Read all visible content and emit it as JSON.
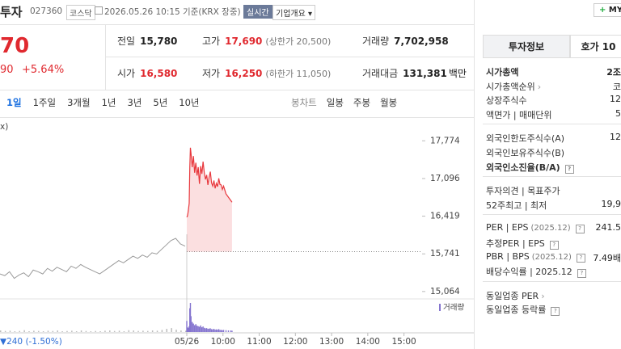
{
  "header": {
    "name": "투자",
    "code": "027360",
    "market": "코스닥",
    "timestamp": "2026.05.26 10:15 기준(KRX 장중)",
    "realtime": "실시간",
    "company_info": "기업개요",
    "my": "MY"
  },
  "quote": {
    "price": "70",
    "change": "90",
    "change_rate": "+5.64%",
    "stats": [
      {
        "label": "전일",
        "value": "15,780"
      },
      {
        "label": "고가",
        "value": "17,690",
        "note": "(상한가 20,500)",
        "color": "#e0292f"
      },
      {
        "label": "거래량",
        "value": "7,702,958"
      },
      {
        "label": "시가",
        "value": "16,580",
        "color": "#e0292f"
      },
      {
        "label": "저가",
        "value": "16,250",
        "note": "(하한가 11,050)",
        "color": "#e0292f"
      },
      {
        "label": "거래대금",
        "value": "131,381",
        "unit": "백만"
      }
    ]
  },
  "periods": [
    "1일",
    "1주일",
    "3개월",
    "1년",
    "3년",
    "5년",
    "10년"
  ],
  "active_period": 0,
  "candle_tabs": [
    "봉차트",
    "일봉",
    "주봉",
    "월봉"
  ],
  "chart": {
    "type": "line",
    "corner_label": "x)",
    "compare_label": "▼240 (-1.50%)",
    "volume_label": "거래량",
    "ylim": [
      14960,
      18200
    ],
    "yticks": [
      {
        "value": 17774,
        "label": "17,774"
      },
      {
        "value": 17096,
        "label": "17,096"
      },
      {
        "value": 16419,
        "label": "16,419"
      },
      {
        "value": 15741,
        "label": "15,741"
      },
      {
        "value": 15064,
        "label": "15,064"
      }
    ],
    "xlim": [
      540,
      930
    ],
    "xticks": [
      {
        "value": 540,
        "label": "05/26"
      },
      {
        "value": 600,
        "label": "10:00"
      },
      {
        "value": 660,
        "label": "11:00"
      },
      {
        "value": 720,
        "label": "12:00"
      },
      {
        "value": 780,
        "label": "13:00"
      },
      {
        "value": 840,
        "label": "14:00"
      },
      {
        "value": 900,
        "label": "15:00"
      }
    ],
    "baseline": 15780,
    "volume_color": "#8575cf",
    "prev_day": {
      "color": "#9a9a9a",
      "values": [
        15380,
        15350,
        15420,
        15300,
        15360,
        15400,
        15330,
        15450,
        15420,
        15380,
        15480,
        15430,
        15500,
        15460,
        15420,
        15520,
        15480,
        15550,
        15500,
        15460,
        15420,
        15380,
        15440,
        15500,
        15560,
        15620,
        15580,
        15640,
        15700,
        15660,
        15720,
        15680,
        15760,
        15740,
        15820,
        15900,
        15980,
        16020,
        15920,
        15880
      ],
      "volume": [
        60,
        40,
        50,
        30,
        40,
        70,
        30,
        50,
        40,
        30,
        50,
        40,
        60,
        30,
        40,
        50,
        30,
        60,
        40,
        30,
        40,
        30,
        50,
        60,
        40,
        50,
        30,
        70,
        60,
        40,
        50,
        40,
        60,
        50,
        80,
        120,
        150,
        90,
        60,
        50
      ]
    },
    "today": {
      "color": "#e8383d",
      "x": [
        540,
        541,
        542,
        543,
        544,
        545,
        546,
        547,
        549,
        551,
        553,
        555,
        557,
        559,
        561,
        563,
        565,
        567,
        569,
        571,
        573,
        575,
        577,
        579,
        581,
        583,
        585,
        587,
        589,
        591,
        593,
        595,
        597,
        599,
        601,
        605,
        609,
        613,
        615
      ],
      "values": [
        16400,
        16420,
        16480,
        16560,
        16650,
        17300,
        17650,
        17550,
        17300,
        17500,
        17200,
        17380,
        17150,
        17300,
        17000,
        17320,
        17180,
        17400,
        17200,
        17080,
        17160,
        16980,
        17120,
        17220,
        17020,
        16960,
        17060,
        16920,
        17010,
        16950,
        17100,
        16990,
        16980,
        16900,
        16960,
        16820,
        16760,
        16700,
        16670
      ],
      "volume": [
        420,
        180,
        150,
        160,
        220,
        900,
        1100,
        600,
        380,
        320,
        260,
        300,
        240,
        220,
        200,
        250,
        180,
        210,
        160,
        140,
        150,
        120,
        130,
        140,
        110,
        100,
        120,
        90,
        100,
        90,
        110,
        80,
        80,
        70,
        80,
        70,
        60,
        60,
        50
      ]
    }
  },
  "side_panel": {
    "tabs": [
      "투자정보",
      "호가 10"
    ],
    "groups": [
      [
        {
          "label": "시가총액",
          "value": "2조",
          "bold": true
        },
        {
          "label": "시가총액순위",
          "value": "코",
          "arrow": true
        },
        {
          "label": "상장주식수",
          "value": "12"
        },
        {
          "label": "액면가 | 매매단위",
          "value": "5"
        }
      ],
      [
        {
          "label": "외국인한도주식수(A)",
          "value": "12"
        },
        {
          "label": "외국인보유주식수(B)"
        },
        {
          "label": "외국인소진율(B/A)",
          "bold": true,
          "help": true
        }
      ],
      [
        {
          "label": "투자의견 | 목표주가"
        },
        {
          "label": "52주최고 | 최저",
          "value": "19,9"
        }
      ],
      [
        {
          "label": "PER | EPS",
          "date": "(2025.12)",
          "help": true,
          "value": "241.5"
        },
        {
          "label": "추정PER | EPS",
          "help": true
        },
        {
          "label": "PBR | BPS",
          "date": "(2025.12)",
          "help": true,
          "value": "7.49배"
        },
        {
          "label": "배당수익률 | 2025.12",
          "help": true
        }
      ],
      [
        {
          "label": "동일업종 PER",
          "arrow": true
        },
        {
          "label": "동일업종 등락률",
          "help": true
        }
      ]
    ]
  }
}
